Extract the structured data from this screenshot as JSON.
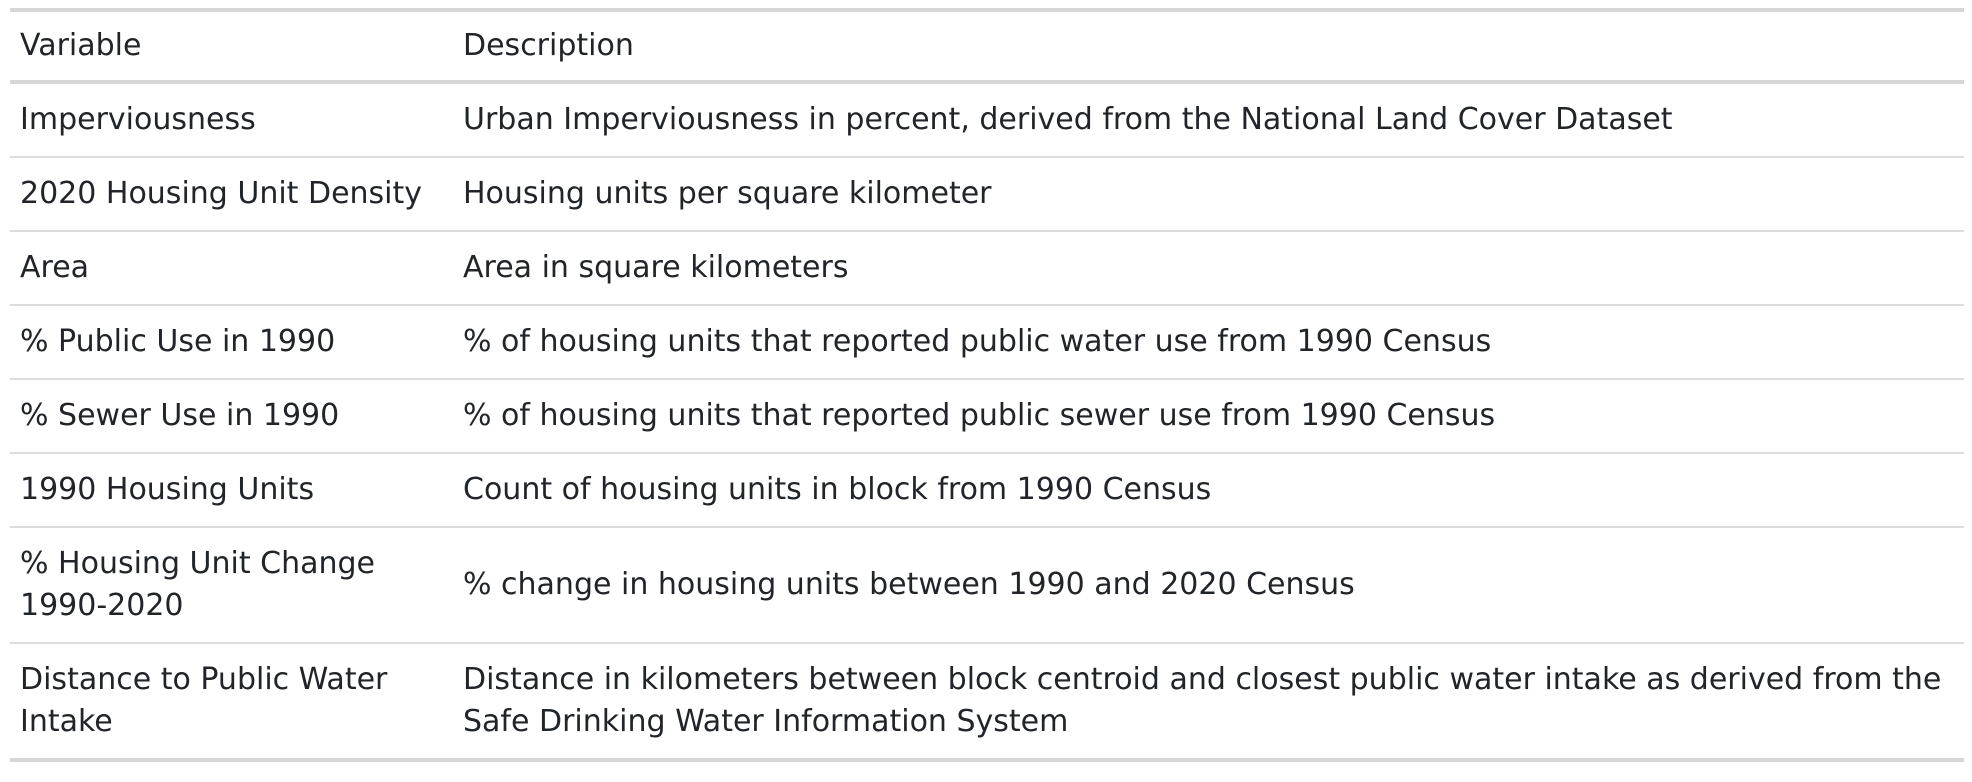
{
  "table": {
    "headers": [
      "Variable",
      "Description"
    ],
    "rows": [
      {
        "variable": "Imperviousness",
        "description": "Urban Imperviousness in percent, derived from the National Land Cover Dataset"
      },
      {
        "variable": "2020 Housing Unit Density",
        "description": "Housing units per square kilometer"
      },
      {
        "variable": "Area",
        "description": "Area in square kilometers"
      },
      {
        "variable": "% Public Use in 1990",
        "description": "% of housing units that reported public water use from 1990 Census"
      },
      {
        "variable": "% Sewer Use in 1990",
        "description": "% of housing units that reported public sewer use from 1990 Census"
      },
      {
        "variable": "1990 Housing Units",
        "description": "Count of housing units in block from 1990 Census"
      },
      {
        "variable": "% Housing Unit Change 1990-2020",
        "description": "% change in housing units between 1990 and 2020 Census"
      },
      {
        "variable": "Distance to Public Water Intake",
        "description": "Distance in kilometers between block centroid and closest public water intake as derived from the Safe Drinking Water Information System"
      }
    ]
  }
}
